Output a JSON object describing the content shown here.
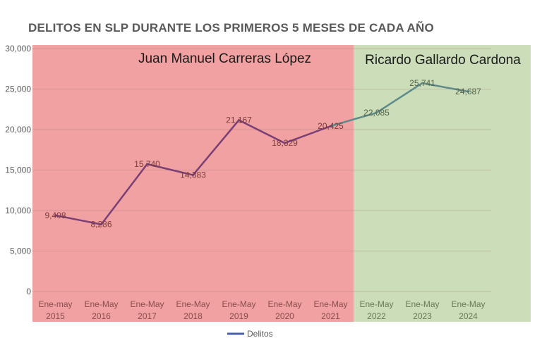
{
  "chart_data": {
    "type": "line",
    "title": "DELITOS EN SLP DURANTE LOS PRIMEROS 5 MESES DE CADA AÑO",
    "categories": [
      [
        "Ene-may",
        "2015"
      ],
      [
        "Ene-May",
        "2016"
      ],
      [
        "Ene-May",
        "2017"
      ],
      [
        "Ene-May",
        "2018"
      ],
      [
        "Ene-May",
        "2019"
      ],
      [
        "Ene-May",
        "2020"
      ],
      [
        "Ene-May",
        "2021"
      ],
      [
        "Ene-May",
        "2022"
      ],
      [
        "Ene-May",
        "2023"
      ],
      [
        "Ene-May",
        "2024"
      ]
    ],
    "series": [
      {
        "name": "Delitos",
        "values": [
          9408,
          8286,
          15740,
          14383,
          21167,
          18329,
          20425,
          22085,
          25741,
          24687
        ],
        "data_labels": [
          "9,408",
          "8,286",
          "15,740",
          "14,383",
          "21,167",
          "18,329",
          "20,425",
          "22,085",
          "25,741",
          "24,687"
        ]
      }
    ],
    "ylim": [
      0,
      30000
    ],
    "y_ticks": [
      0,
      5000,
      10000,
      15000,
      20000,
      25000,
      30000
    ],
    "y_tick_labels": [
      "0",
      "5,000",
      "10,000",
      "15,000",
      "20,000",
      "25,000",
      "30,000"
    ],
    "gridlines": true,
    "legend_position": "bottom",
    "regions": [
      {
        "label": "Juan Manuel Carreras López",
        "from_index": 0,
        "to_index": 6,
        "color": "#f1a1a1"
      },
      {
        "label": "Ricardo Gallardo Cardona",
        "from_index": 7,
        "to_index": 9,
        "color": "#cbddb9"
      }
    ],
    "line_colors": {
      "first_region": "#7b3f78",
      "second_region": "#5f8a8a"
    },
    "legend_line_color": "#4a5fa8"
  }
}
